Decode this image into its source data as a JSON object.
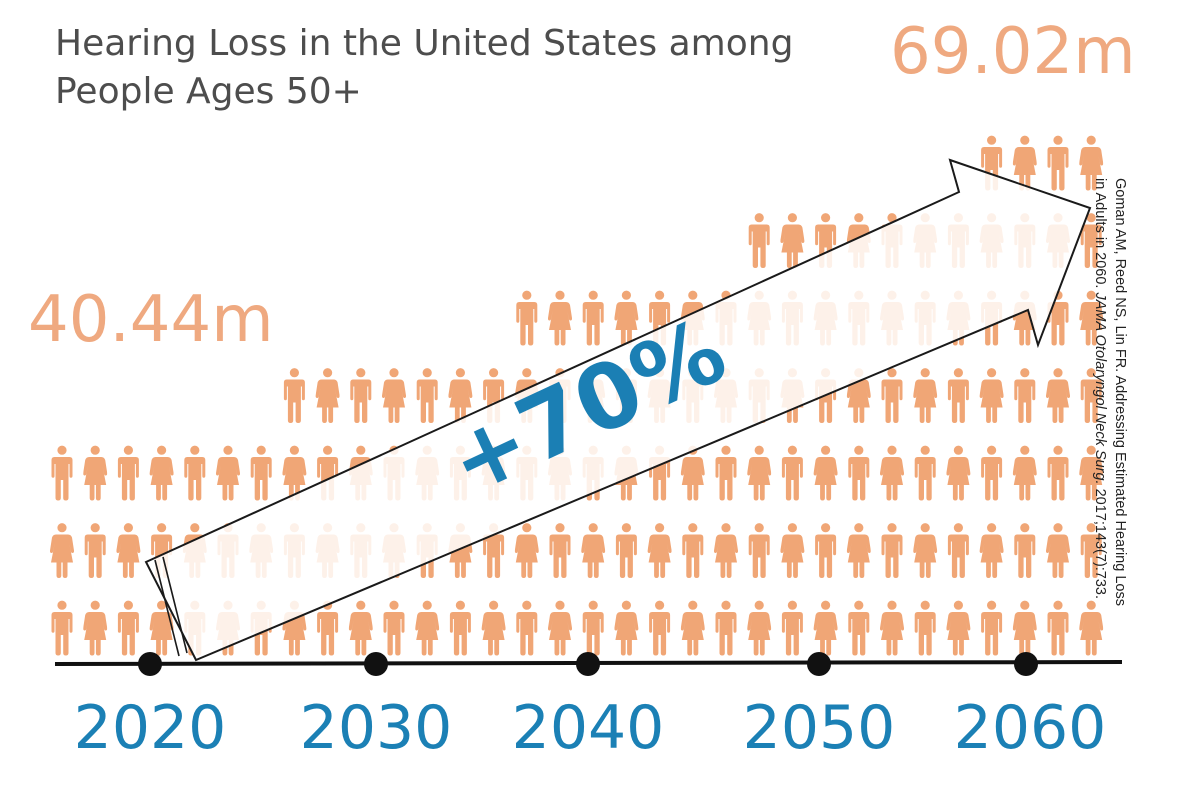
{
  "title_lines": [
    "Hearing Loss in the United States among",
    "People Ages 50+"
  ],
  "start_value_label": "40.44m",
  "end_value_label": "69.02m",
  "change_label": "+70%",
  "citation": {
    "line1": "Goman AM, Reed NS, Lin FR. Addressing Estimated Hearing Loss",
    "line2_pre": "in Adults in 2060. ",
    "line2_journal": "JAMA Otolaryngol Neck Surg.",
    "line2_post": " 2017;143(7):733."
  },
  "colors": {
    "people": "#f0a676",
    "year": "#1b80b5",
    "title": "#4d4d4d",
    "value": "#efa980",
    "axis": "#111111"
  },
  "icon": "person-icon",
  "chart_data": {
    "type": "pictograph",
    "title": "Hearing Loss in the United States among People Ages 50+",
    "units": "millions of people",
    "x": [
      2020,
      2030,
      2040,
      2050,
      2060
    ],
    "values": [
      40.44,
      null,
      null,
      null,
      69.02
    ],
    "value_labels": [
      "40.44m",
      "",
      "",
      "",
      "69.02m"
    ],
    "icon_rows_per_year": [
      3,
      4,
      5,
      6,
      7
    ],
    "change_percent": 70,
    "annotation": "+70%"
  }
}
